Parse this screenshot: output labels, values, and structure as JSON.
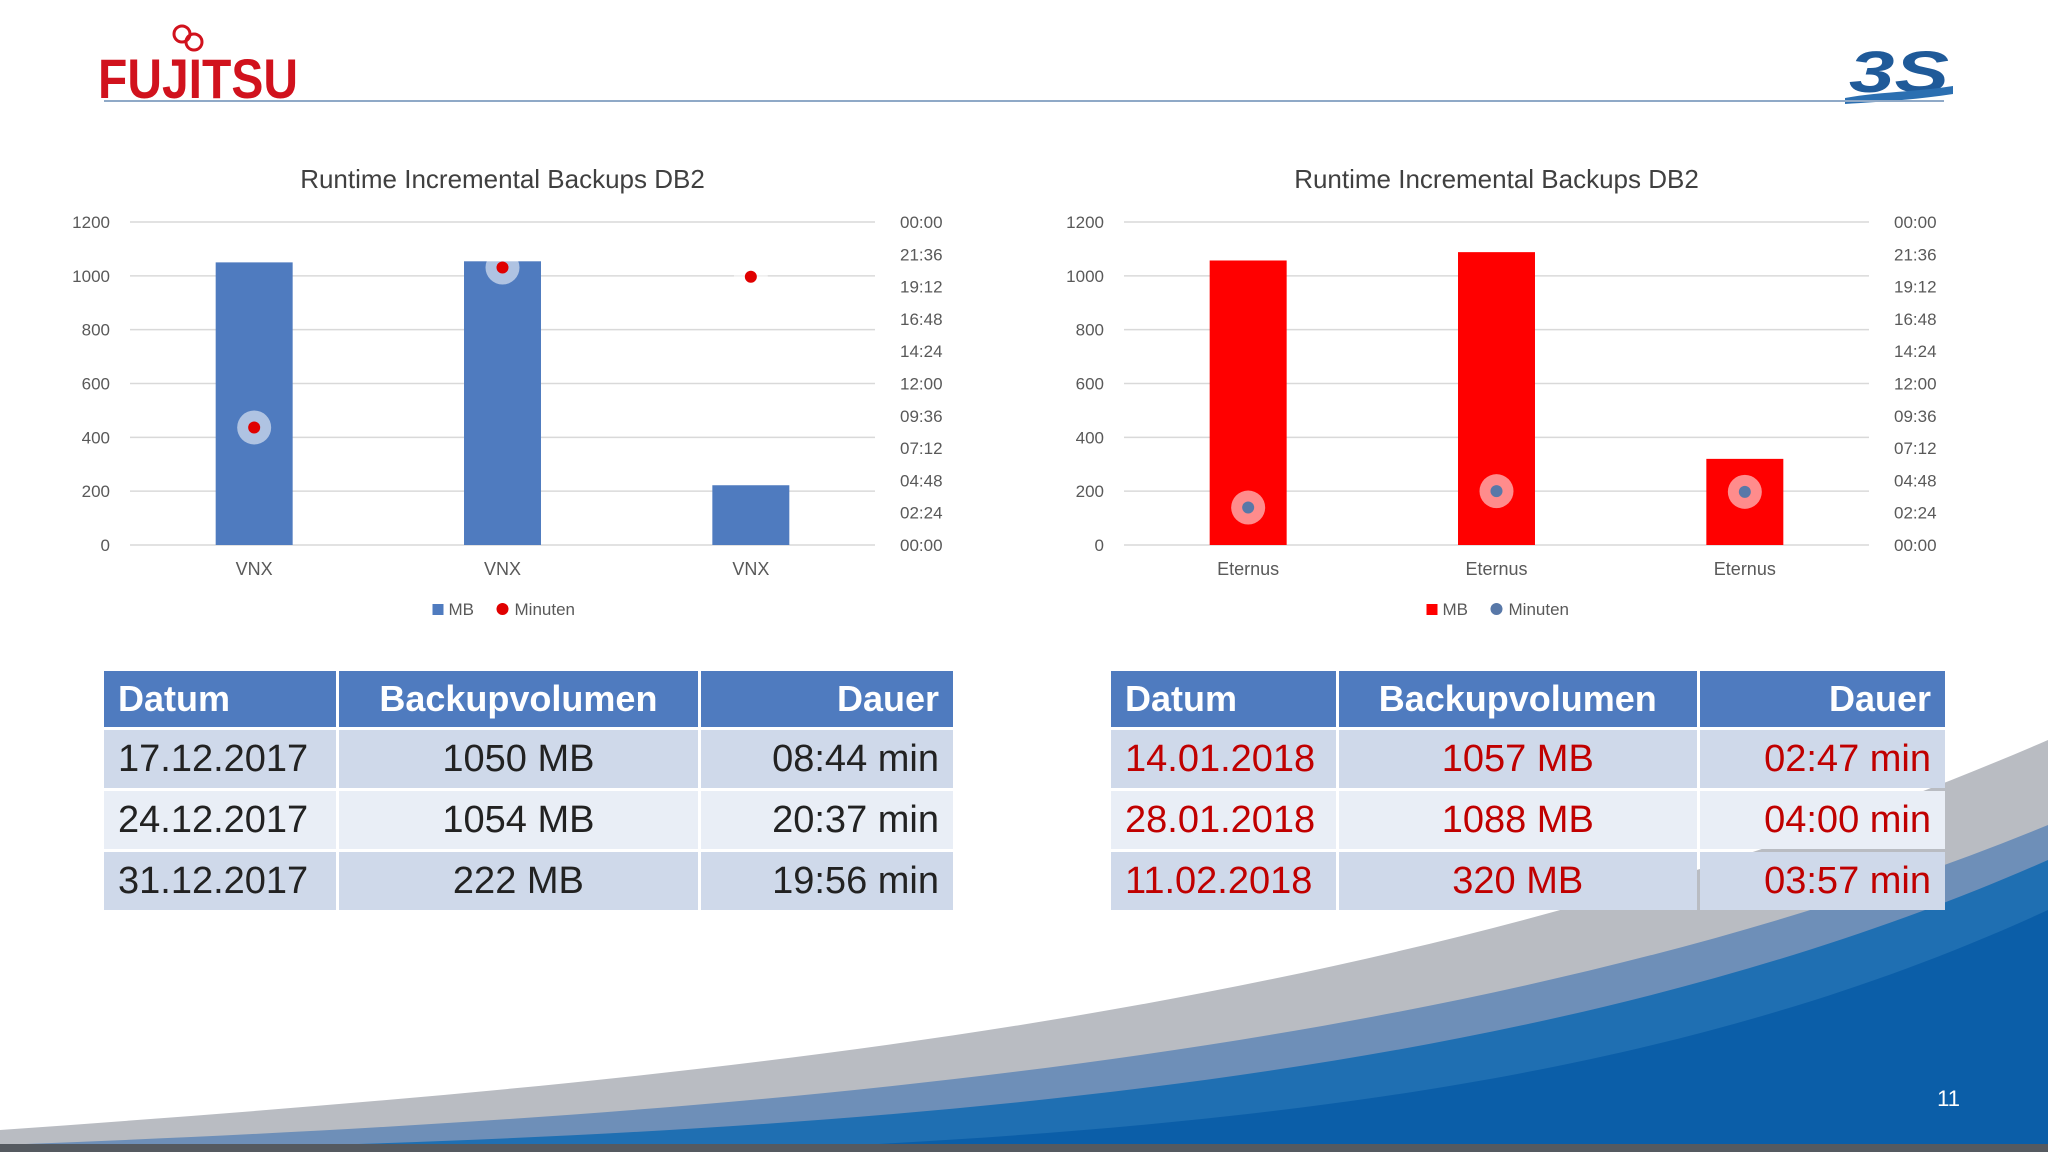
{
  "header": {
    "logo_text": "FUJITSU",
    "brand_mark": "3S"
  },
  "colors": {
    "left_bar": "#4f7bbf",
    "left_marker": "#e00000",
    "right_bar": "#ff0000",
    "right_marker": "#5878a8",
    "table_header": "#4f7bbf",
    "table_row_odd": "#cfd9ea",
    "table_row_even": "#e9eef6",
    "right_table_text": "#c00000"
  },
  "charts": {
    "left": {
      "chart_data": {
        "type": "bar",
        "title": "Runtime Incremental Backups DB2",
        "categories": [
          "VNX",
          "VNX",
          "VNX"
        ],
        "series": [
          {
            "name": "MB",
            "type": "bar",
            "axis": "left",
            "values": [
              1050,
              1054,
              222
            ]
          },
          {
            "name": "Minuten",
            "type": "scatter",
            "axis": "right",
            "values_minutes": [
              524,
              1237,
              1196
            ]
          }
        ],
        "y_left": {
          "range": [
            0,
            1200
          ],
          "ticks": [
            "0",
            "200",
            "400",
            "600",
            "800",
            "1000",
            "1200"
          ]
        },
        "y_right": {
          "range_minutes": [
            0,
            1440
          ],
          "ticks": [
            "00:00",
            "02:24",
            "04:48",
            "07:12",
            "09:36",
            "12:00",
            "14:24",
            "16:48",
            "19:12",
            "21:36",
            "00:00"
          ]
        },
        "legend": [
          "MB",
          "Minuten"
        ],
        "legend_position": "bottom",
        "grid": true
      }
    },
    "right": {
      "chart_data": {
        "type": "bar",
        "title": "Runtime Incremental Backups DB2",
        "categories": [
          "Eternus",
          "Eternus",
          "Eternus"
        ],
        "series": [
          {
            "name": "MB",
            "type": "bar",
            "axis": "left",
            "values": [
              1057,
              1088,
              320
            ]
          },
          {
            "name": "Minuten",
            "type": "scatter",
            "axis": "right",
            "values_minutes": [
              167,
              240,
              237
            ]
          }
        ],
        "y_left": {
          "range": [
            0,
            1200
          ],
          "ticks": [
            "0",
            "200",
            "400",
            "600",
            "800",
            "1000",
            "1200"
          ]
        },
        "y_right": {
          "range_minutes": [
            0,
            1440
          ],
          "ticks": [
            "00:00",
            "02:24",
            "04:48",
            "07:12",
            "09:36",
            "12:00",
            "14:24",
            "16:48",
            "19:12",
            "21:36",
            "00:00"
          ]
        },
        "legend": [
          "MB",
          "Minuten"
        ],
        "legend_position": "bottom",
        "grid": true
      }
    }
  },
  "tables": {
    "left": {
      "headers": [
        "Datum",
        "Backupvolumen",
        "Dauer"
      ],
      "rows": [
        [
          "17.12.2017",
          "1050 MB",
          "08:44 min"
        ],
        [
          "24.12.2017",
          "1054 MB",
          "20:37 min"
        ],
        [
          "31.12.2017",
          "222 MB",
          "19:56 min"
        ]
      ]
    },
    "right": {
      "headers": [
        "Datum",
        "Backupvolumen",
        "Dauer"
      ],
      "rows": [
        [
          "14.01.2018",
          "1057 MB",
          "02:47 min"
        ],
        [
          "28.01.2018",
          "1088 MB",
          "04:00 min"
        ],
        [
          "11.02.2018",
          "320 MB",
          "03:57 min"
        ]
      ]
    }
  },
  "footer": {
    "page_number": "11"
  }
}
